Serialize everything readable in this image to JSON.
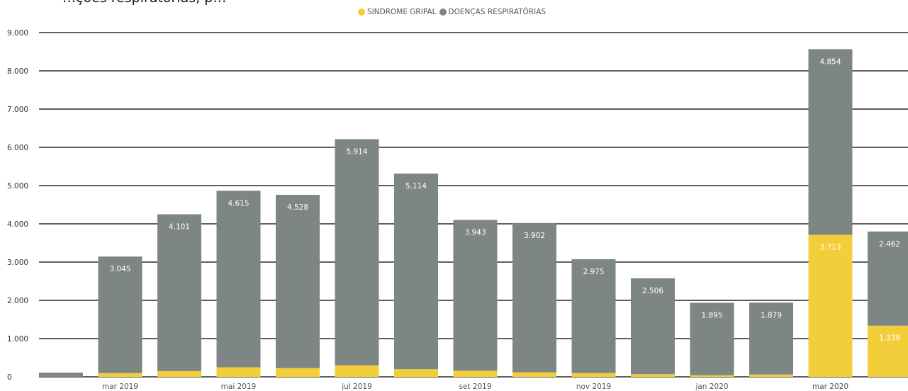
{
  "header": {
    "title_fragment": "…ções respiratórias, p…"
  },
  "legend": {
    "items": [
      {
        "label": "SINDROME GRIPAL",
        "color": "#F2CF3A"
      },
      {
        "label": "DOENÇAS RESPIRATÓRIAS",
        "color": "#7E8585"
      }
    ]
  },
  "chart_data": {
    "type": "bar",
    "stacked": true,
    "categories": [
      "fev 2019",
      "mar 2019",
      "abr 2019",
      "mai 2019",
      "jun 2019",
      "jul 2019",
      "ago 2019",
      "set 2019",
      "out 2019",
      "nov 2019",
      "dez 2019",
      "jan 2020",
      "fev 2020",
      "mar 2020",
      "abr 2020"
    ],
    "x_tick_labels": [
      "mar 2019",
      "mai 2019",
      "jul 2019",
      "set 2019",
      "nov 2019",
      "jan 2020",
      "mar 2020"
    ],
    "series": [
      {
        "name": "SINDROME GRIPAL",
        "color": "#F2CF3A",
        "values": [
          0,
          100,
          150,
          250,
          230,
          300,
          200,
          160,
          120,
          100,
          70,
          40,
          60,
          3713,
          1338
        ]
      },
      {
        "name": "DOENÇAS RESPIRATÓRIAS",
        "color": "#7E8585",
        "values": [
          110,
          3045,
          4101,
          4615,
          4528,
          5914,
          5114,
          3943,
          3902,
          2975,
          2506,
          1895,
          1879,
          4854,
          2462
        ]
      }
    ],
    "data_labels": {
      "SINDROME GRIPAL": [
        null,
        null,
        null,
        null,
        null,
        null,
        null,
        null,
        null,
        null,
        null,
        null,
        null,
        "3.713",
        "1.338"
      ],
      "DOENÇAS RESPIRATÓRIAS": [
        null,
        "3.045",
        "4.101",
        "4.615",
        "4.528",
        "5.914",
        "5.114",
        "3.943",
        "3.902",
        "2.975",
        "2.506",
        "1.895",
        "1.879",
        "4.854",
        "2.462"
      ]
    },
    "y_ticks": [
      0,
      1000,
      2000,
      3000,
      4000,
      5000,
      6000,
      7000,
      8000,
      9000
    ],
    "y_tick_labels": [
      "0",
      "1.000",
      "2.000",
      "3.000",
      "4.000",
      "5.000",
      "6.000",
      "7.000",
      "8.000",
      "9.000"
    ],
    "ylim": [
      0,
      9000
    ],
    "grid": true,
    "legend_position": "top-center",
    "xlabel": "",
    "ylabel": ""
  }
}
